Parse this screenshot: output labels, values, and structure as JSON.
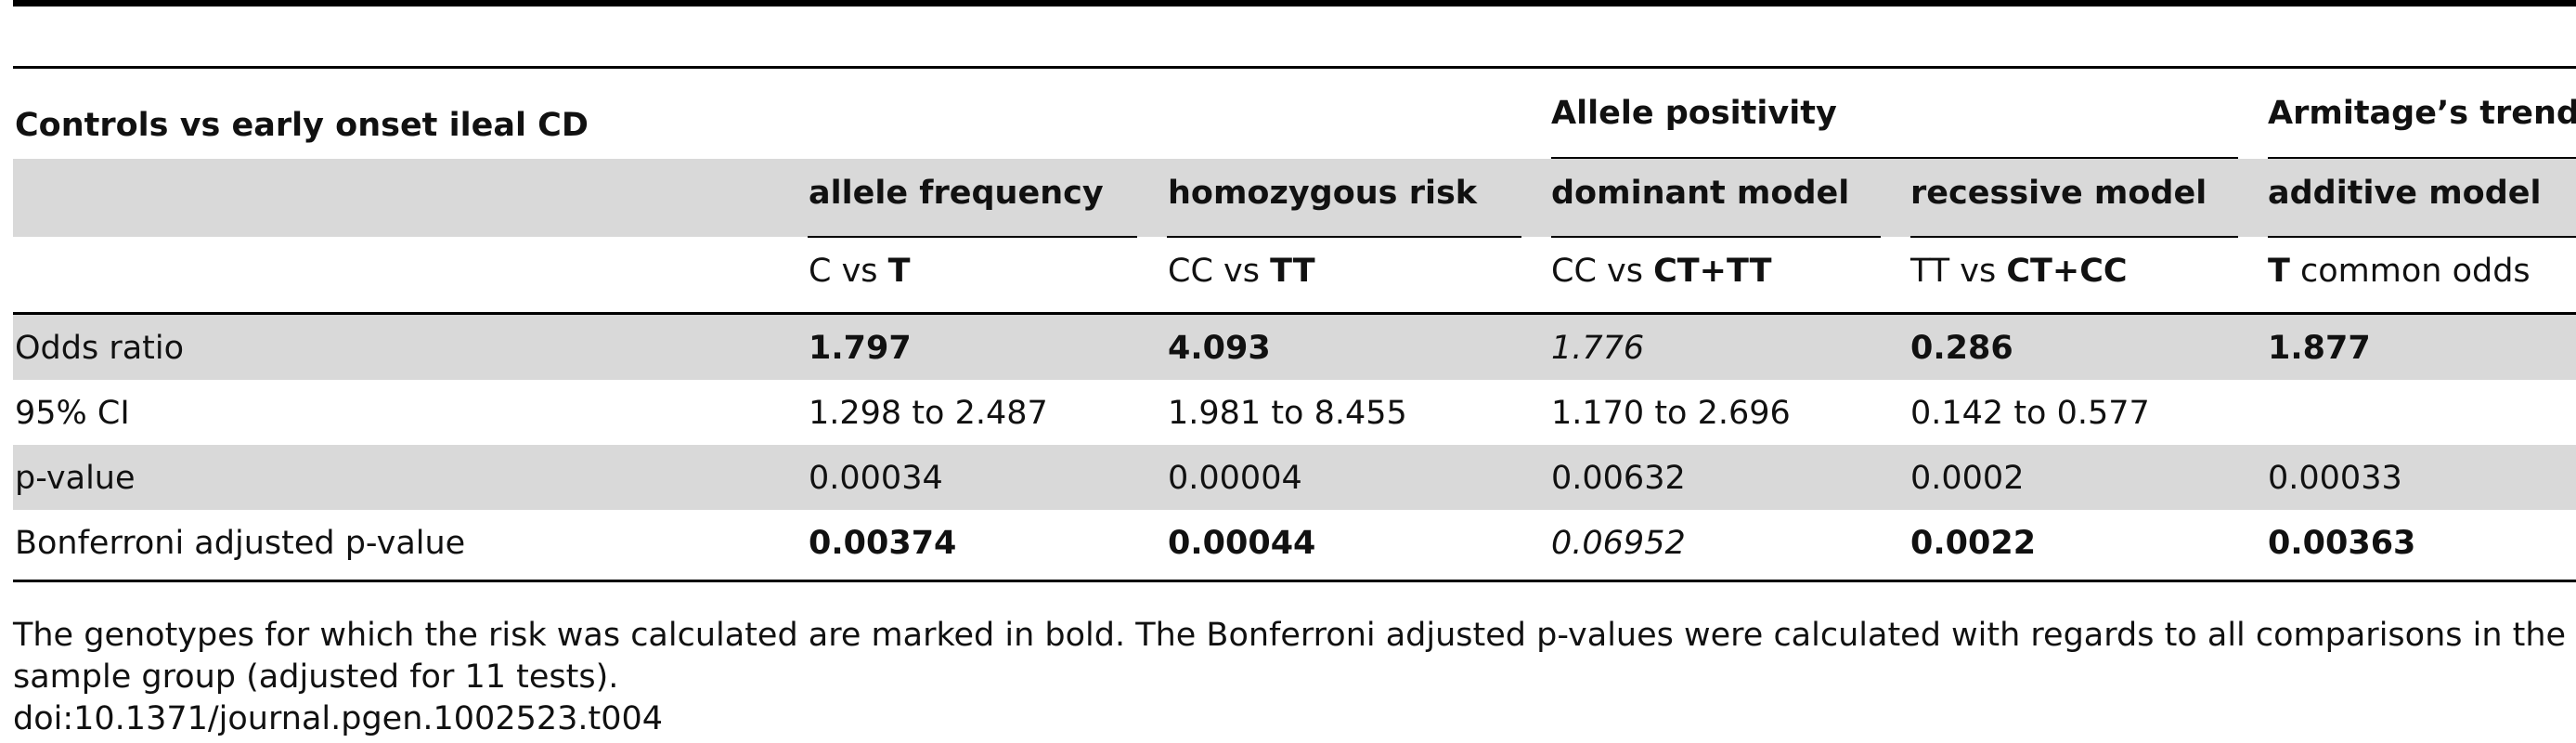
{
  "table": {
    "title": "Controls vs early onset ileal CD",
    "group_headers": {
      "allele_positivity": "Allele positivity",
      "armitage": "Armitage’s trend"
    },
    "columns": [
      {
        "model": "allele frequency",
        "comparison_plain": "C vs ",
        "comparison_bold": "T"
      },
      {
        "model": "homozygous risk",
        "comparison_plain": "CC vs ",
        "comparison_bold": "TT"
      },
      {
        "model": "dominant model",
        "comparison_plain": "CC vs ",
        "comparison_bold": "CT+TT"
      },
      {
        "model": "recessive model",
        "comparison_plain": "TT vs ",
        "comparison_bold": "CT+CC"
      },
      {
        "model": "additive model",
        "comparison_bold": "T",
        "comparison_plain_after": " common odds"
      }
    ],
    "rows": [
      {
        "label": "Odds ratio",
        "values": [
          "1.797",
          "4.093",
          "1.776",
          "0.286",
          "1.877"
        ]
      },
      {
        "label": "95% CI",
        "values": [
          "1.298 to 2.487",
          "1.981 to 8.455",
          "1.170 to 2.696",
          "0.142 to 0.577",
          ""
        ]
      },
      {
        "label": "p-value",
        "values": [
          "0.00034",
          "0.00004",
          "0.00632",
          "0.0002",
          "0.00033"
        ]
      },
      {
        "label": "Bonferroni adjusted p-value",
        "values": [
          "0.00374",
          "0.00044",
          "0.06952",
          "0.0022",
          "0.00363"
        ]
      }
    ]
  },
  "footnote": {
    "line1": "The genotypes for which the risk was calculated are marked in bold. The Bonferroni adjusted p-values were calculated with regards to all comparisons in the overall",
    "line2": "sample group (adjusted for 11 tests).",
    "doi": "doi:10.1371/journal.pgen.1002523.t004"
  }
}
